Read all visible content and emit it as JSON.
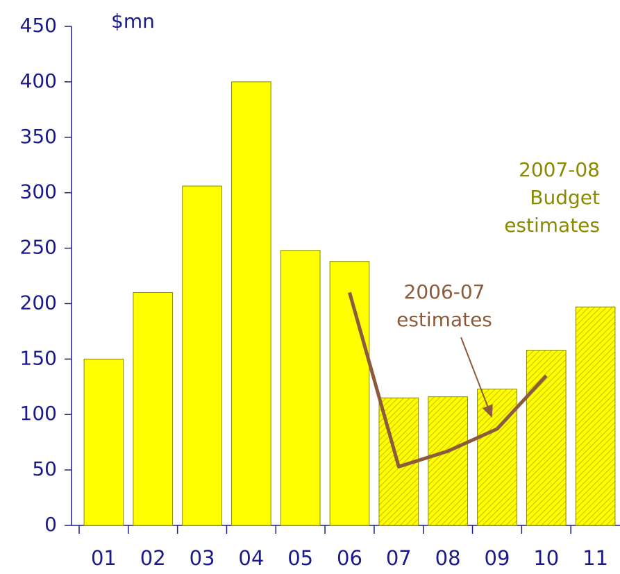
{
  "chart_data": {
    "type": "bar",
    "unit_label": "$mn",
    "categories": [
      "01",
      "02",
      "03",
      "04",
      "05",
      "06",
      "07",
      "08",
      "09",
      "10",
      "11"
    ],
    "values": [
      150,
      210,
      306,
      400,
      248,
      238,
      115,
      116,
      123,
      158,
      197
    ],
    "color": "#ffff00",
    "hatch": [
      false,
      false,
      false,
      false,
      false,
      false,
      true,
      true,
      true,
      true,
      true
    ],
    "line": {
      "color": "#8c5a3c",
      "values": [
        null,
        null,
        null,
        null,
        null,
        210,
        53,
        67,
        87,
        135,
        null
      ]
    },
    "annotations": [
      {
        "lines": [
          "2007-08",
          "Budget",
          "estimates"
        ],
        "color": "#8a8a00"
      },
      {
        "lines": [
          "2006-07",
          "estimates"
        ],
        "color": "#8c5a3c"
      }
    ],
    "ylim": [
      0,
      450
    ],
    "yticks": [
      0,
      50,
      100,
      150,
      200,
      250,
      300,
      350,
      400,
      450
    ]
  }
}
